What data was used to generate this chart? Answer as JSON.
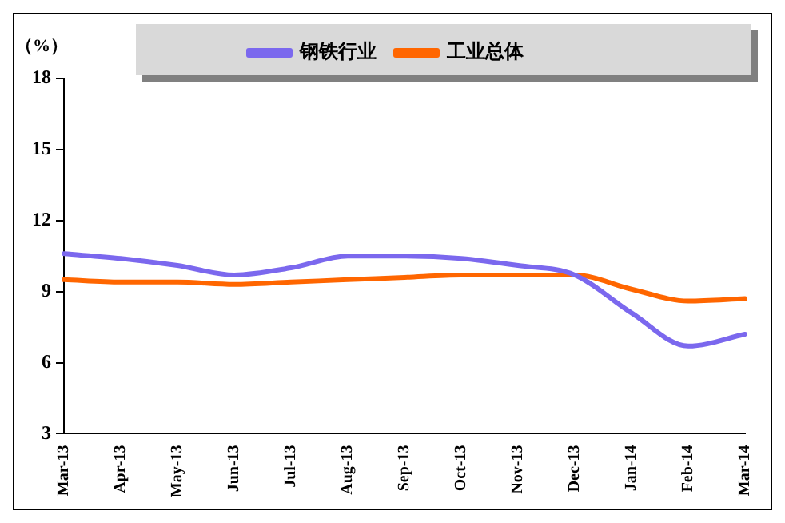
{
  "chart_data": {
    "type": "line",
    "ylabel": "（%）",
    "categories": [
      "Mar-13",
      "Apr-13",
      "May-13",
      "Jun-13",
      "Jul-13",
      "Aug-13",
      "Sep-13",
      "Oct-13",
      "Nov-13",
      "Dec-13",
      "Jan-14",
      "Feb-14",
      "Mar-14"
    ],
    "series": [
      {
        "name": "钢铁行业",
        "color": "#7b68ee",
        "values": [
          10.6,
          10.4,
          10.1,
          9.7,
          10.0,
          10.5,
          10.5,
          10.4,
          10.1,
          9.7,
          8.1,
          6.7,
          7.2
        ]
      },
      {
        "name": "工业总体",
        "color": "#ff6600",
        "values": [
          9.5,
          9.4,
          9.4,
          9.3,
          9.4,
          9.5,
          9.6,
          9.7,
          9.7,
          9.7,
          9.1,
          8.6,
          8.7
        ]
      }
    ],
    "ylim": [
      3,
      18
    ],
    "yticks": [
      3,
      6,
      9,
      12,
      15,
      18
    ],
    "grid": false,
    "legend": "top",
    "marker": "none",
    "line_style": "solid"
  }
}
